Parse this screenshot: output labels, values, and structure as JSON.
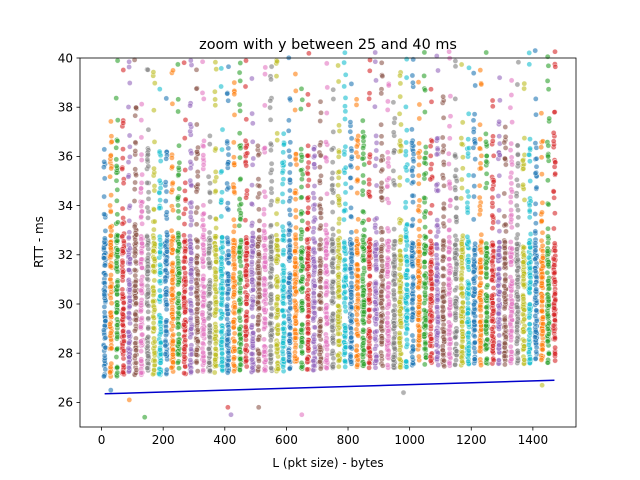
{
  "chart_data": {
    "type": "scatter",
    "title": "zoom with y between 25 and 40 ms",
    "xlabel": "L (pkt size) - bytes",
    "ylabel": "RTT - ms",
    "xlim": [
      -70,
      1540
    ],
    "ylim": [
      25,
      40
    ],
    "xticks": [
      0,
      200,
      400,
      600,
      800,
      1000,
      1200,
      1400
    ],
    "yticks": [
      26,
      28,
      30,
      32,
      34,
      36,
      38,
      40
    ],
    "grid": false,
    "legend": "none",
    "palette": [
      "#1f77b4",
      "#ff7f0e",
      "#2ca02c",
      "#d62728",
      "#9467bd",
      "#8c564b",
      "#e377c2",
      "#7f7f7f",
      "#bcbd22",
      "#17becf"
    ],
    "sample_x_start": 10,
    "sample_x_end": 1470,
    "sample_x_step": 20,
    "points_per_column": 90,
    "trend_line": {
      "x": [
        10,
        1470
      ],
      "y": [
        26.35,
        26.9
      ],
      "color": "#0000cc"
    }
  }
}
